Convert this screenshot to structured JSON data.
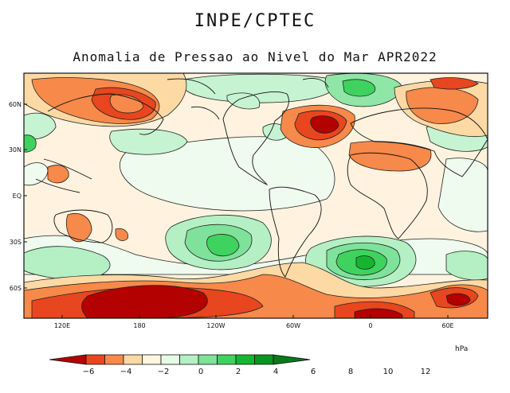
{
  "header": {
    "agency": "INPE/CPTEC",
    "title": "Anomalia de Pressao ao Nivel do Mar APR2022"
  },
  "axes": {
    "lat_labels": [
      "60N",
      "30N",
      "EQ",
      "30S",
      "60S"
    ],
    "lon_labels": [
      "120E",
      "180",
      "120W",
      "60W",
      "0",
      "60E"
    ]
  },
  "colorbar": {
    "unit": "hPa",
    "ticks": [
      "−6",
      "−4",
      "−2",
      "0",
      "2",
      "4",
      "6",
      "8",
      "10",
      "12"
    ],
    "colors": [
      "#b30000",
      "#e8461e",
      "#f7894a",
      "#fdd9a4",
      "#fff6e0",
      "#e6fbe6",
      "#b4f0c4",
      "#7fe29a",
      "#3fd25e",
      "#16b52f",
      "#0a9420",
      "#067a18"
    ]
  }
}
